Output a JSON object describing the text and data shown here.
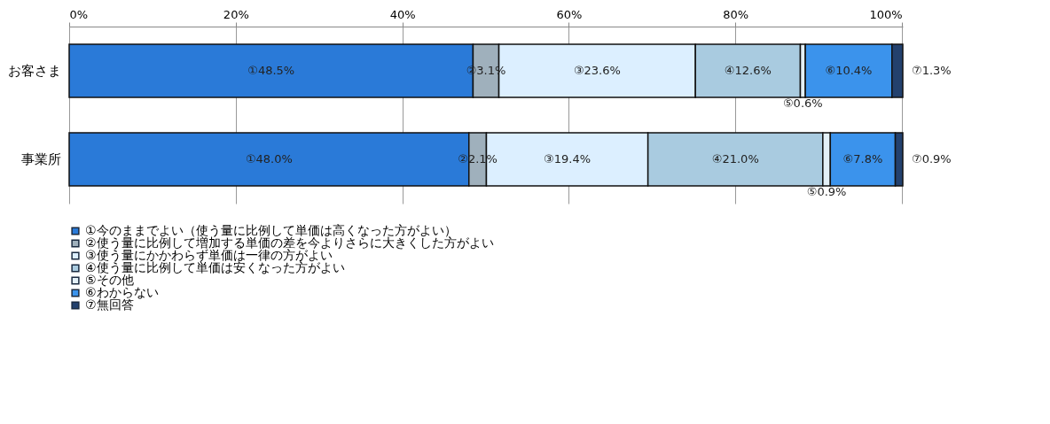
{
  "chart_data": {
    "type": "bar",
    "orientation": "horizontal",
    "stacked": true,
    "categories": [
      "お客さま",
      "事業所"
    ],
    "xlim": [
      0,
      100.1
    ],
    "xticks": [
      {
        "value": 0,
        "label": "0%"
      },
      {
        "value": 20,
        "label": "20%"
      },
      {
        "value": 40,
        "label": "40%"
      },
      {
        "value": 60,
        "label": "60%"
      },
      {
        "value": 80,
        "label": "80%"
      },
      {
        "value": 100,
        "label": "100%"
      }
    ],
    "grid": "x",
    "legend": "bottom",
    "series": [
      {
        "name": "①今のままでよい（使う量に比例して単価は高くなった方がよい）",
        "color": "#2a7ad8",
        "values": [
          48.5,
          48.0
        ],
        "value_labels": [
          "①48.5%",
          "①48.0%"
        ]
      },
      {
        "name": "②使う量に比例して増加する単価の差を今よりさらに大きくした方がよい",
        "color": "#9fb0bc",
        "values": [
          3.1,
          2.1
        ],
        "value_labels": [
          "②3.1%",
          "②2.1%"
        ]
      },
      {
        "name": "③使う量にかかわらず単価は一律の方がよい",
        "color": "#dcefff",
        "values": [
          23.6,
          19.4
        ],
        "value_labels": [
          "③23.6%",
          "③19.4%"
        ]
      },
      {
        "name": "④使う量に比例して単価は安くなった方がよい",
        "color": "#a9cbe0",
        "values": [
          12.6,
          21.0
        ],
        "value_labels": [
          "④12.6%",
          "④21.0%"
        ]
      },
      {
        "name": "⑤その他",
        "color": "#e3f0f7",
        "values": [
          0.6,
          0.9
        ],
        "value_labels": [
          "⑤0.6%",
          "⑤0.9%"
        ]
      },
      {
        "name": "⑥わからない",
        "color": "#3b93ec",
        "values": [
          10.4,
          7.8
        ],
        "value_labels": [
          "⑥10.4%",
          "⑥7.8%"
        ]
      },
      {
        "name": "⑦無回答",
        "color": "#23416e",
        "values": [
          1.3,
          0.9
        ],
        "value_labels": [
          "⑦1.3%",
          "⑦0.9%"
        ]
      }
    ]
  }
}
